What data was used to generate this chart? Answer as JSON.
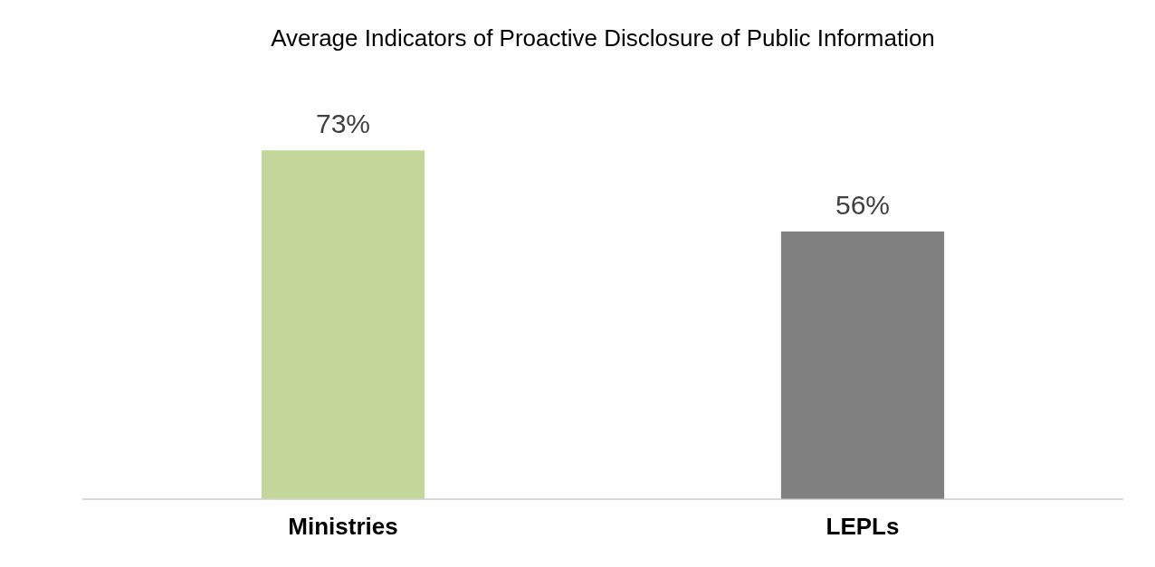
{
  "chart_data": {
    "type": "bar",
    "title": "Average Indicators of Proactive Disclosure of Public Information",
    "categories": [
      "Ministries",
      "LEPLs"
    ],
    "values": [
      73,
      56
    ],
    "colors": [
      "#c4d79b",
      "#808080"
    ],
    "value_labels": [
      "73%",
      "56%"
    ],
    "legend": false,
    "grid": false
  }
}
